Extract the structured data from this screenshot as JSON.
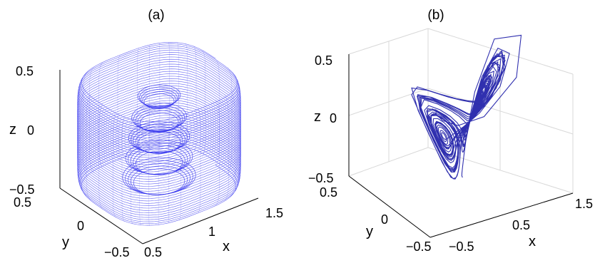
{
  "chart_data": [
    {
      "type": "line3d",
      "title": "(a)",
      "xlabel": "x",
      "ylabel": "y",
      "zlabel": "z",
      "xlim": [
        0.5,
        1.5
      ],
      "ylim": [
        -0.5,
        0.5
      ],
      "zlim": [
        -0.5,
        0.5
      ],
      "x_ticks": [
        "0.5",
        "1",
        "1.5"
      ],
      "y_ticks": [
        "−0.5",
        "0",
        "0.5"
      ],
      "z_ticks": [
        "−0.5",
        "0",
        "0.5"
      ],
      "grid": false,
      "series_color": "#3333ee",
      "description_values": {
        "outer_layers": [
          {
            "z": 0.42,
            "rx": 0.48,
            "ry": 0.46
          },
          {
            "z": 0.3,
            "rx": 0.5,
            "ry": 0.48
          },
          {
            "z": 0.15,
            "rx": 0.51,
            "ry": 0.49
          },
          {
            "z": 0.0,
            "rx": 0.52,
            "ry": 0.5
          },
          {
            "z": -0.15,
            "rx": 0.51,
            "ry": 0.49
          },
          {
            "z": -0.3,
            "rx": 0.5,
            "ry": 0.48
          },
          {
            "z": -0.42,
            "rx": 0.48,
            "ry": 0.46
          }
        ],
        "inner_layers": [
          {
            "z": 0.3,
            "r": 0.14
          },
          {
            "z": 0.12,
            "r": 0.18
          },
          {
            "z": -0.05,
            "r": 0.2
          },
          {
            "z": -0.22,
            "r": 0.22
          },
          {
            "z": -0.38,
            "r": 0.24
          }
        ]
      }
    },
    {
      "type": "line3d",
      "title": "(b)",
      "xlabel": "x",
      "ylabel": "y",
      "zlabel": "z",
      "xlim": [
        -0.5,
        1.5
      ],
      "ylim": [
        -0.5,
        0.5
      ],
      "zlim": [
        -0.5,
        0.5
      ],
      "x_ticks": [
        "−0.5",
        "0.5",
        "1.5"
      ],
      "y_ticks": [
        "−0.5",
        "0",
        "0.5"
      ],
      "z_ticks": [
        "−0.5",
        "0",
        "0.5"
      ],
      "grid": true,
      "series_color": "#1a1aa6",
      "trajectory_points": 900
    }
  ]
}
